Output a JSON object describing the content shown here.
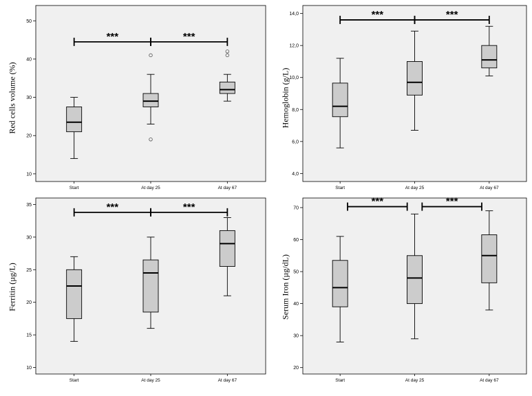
{
  "chart_data": [
    {
      "type": "boxplot",
      "ylabel": "Red cells volume (%)",
      "ylim": [
        8,
        54
      ],
      "yticks": [
        10,
        20,
        30,
        40,
        50
      ],
      "ytick_labels": [
        "10",
        "20",
        "30",
        "40",
        "50"
      ],
      "categories": [
        "Start",
        "At day 25",
        "At day 67"
      ],
      "boxes": [
        {
          "whislo": 14,
          "q1": 21,
          "med": 23.5,
          "q3": 27.5,
          "whishi": 30,
          "fliers": []
        },
        {
          "whislo": 23,
          "q1": 27.5,
          "med": 29,
          "q3": 31,
          "whishi": 36,
          "fliers": [
            41,
            19
          ]
        },
        {
          "whislo": 29,
          "q1": 31,
          "med": 32,
          "q3": 34,
          "whishi": 36,
          "fliers": [
            42,
            41
          ]
        }
      ],
      "significance": [
        {
          "from": 0,
          "to": 1,
          "y": 44.5,
          "label": "***"
        },
        {
          "from": 1,
          "to": 2,
          "y": 44.5,
          "label": "***"
        }
      ]
    },
    {
      "type": "boxplot",
      "ylabel": "Hemoglobin (g/L)",
      "ylim": [
        3.5,
        14.5
      ],
      "yticks": [
        4,
        6,
        8,
        10,
        12,
        14
      ],
      "ytick_labels": [
        "4,0",
        "6,0",
        "8,0",
        "10,0",
        "12,0",
        "14,0"
      ],
      "categories": [
        "Start",
        "At day 25",
        "At day 67"
      ],
      "boxes": [
        {
          "whislo": 5.6,
          "q1": 7.55,
          "med": 8.2,
          "q3": 9.65,
          "whishi": 11.2,
          "fliers": []
        },
        {
          "whislo": 6.7,
          "q1": 8.9,
          "med": 9.7,
          "q3": 11.0,
          "whishi": 12.9,
          "fliers": []
        },
        {
          "whislo": 10.1,
          "q1": 10.6,
          "med": 11.1,
          "q3": 12.0,
          "whishi": 13.2,
          "fliers": []
        }
      ],
      "significance": [
        {
          "from": 0,
          "to": 1,
          "y": 13.6,
          "label": "***"
        },
        {
          "from": 1,
          "to": 2,
          "y": 13.6,
          "label": "***"
        }
      ]
    },
    {
      "type": "boxplot",
      "ylabel": "Ferritin (µg/L)",
      "ylim": [
        9,
        36
      ],
      "yticks": [
        10,
        15,
        20,
        25,
        30,
        35
      ],
      "ytick_labels": [
        "10",
        "15",
        "20",
        "25",
        "30",
        "35"
      ],
      "categories": [
        "Start",
        "At day 25",
        "At day 67"
      ],
      "boxes": [
        {
          "whislo": 14,
          "q1": 17.5,
          "med": 22.5,
          "q3": 25,
          "whishi": 27,
          "fliers": []
        },
        {
          "whislo": 16,
          "q1": 18.5,
          "med": 24.5,
          "q3": 26.5,
          "whishi": 30,
          "fliers": []
        },
        {
          "whislo": 21,
          "q1": 25.5,
          "med": 29,
          "q3": 31,
          "whishi": 33,
          "fliers": []
        }
      ],
      "significance": [
        {
          "from": 0,
          "to": 1,
          "y": 33.8,
          "label": "***"
        },
        {
          "from": 1,
          "to": 2,
          "y": 33.8,
          "label": "***"
        }
      ]
    },
    {
      "type": "boxplot",
      "ylabel": "Serum Iron (µg/dL)",
      "ylim": [
        18,
        73
      ],
      "yticks": [
        20,
        30,
        40,
        50,
        60,
        70
      ],
      "ytick_labels": [
        "20",
        "30",
        "40",
        "50",
        "60",
        "70"
      ],
      "categories": [
        "Start",
        "At day 25",
        "At day 67"
      ],
      "boxes": [
        {
          "whislo": 28,
          "q1": 39,
          "med": 45,
          "q3": 53.5,
          "whishi": 61,
          "fliers": []
        },
        {
          "whislo": 29,
          "q1": 40,
          "med": 48,
          "q3": 55,
          "whishi": 68,
          "fliers": []
        },
        {
          "whislo": 38,
          "q1": 46.5,
          "med": 55,
          "q3": 61.5,
          "whishi": 69,
          "fliers": []
        }
      ],
      "significance": [
        {
          "from": 0.1,
          "to": 0.9,
          "y": 70.3,
          "label": "***"
        },
        {
          "from": 1.1,
          "to": 1.9,
          "y": 70.3,
          "label": "***"
        }
      ]
    }
  ]
}
